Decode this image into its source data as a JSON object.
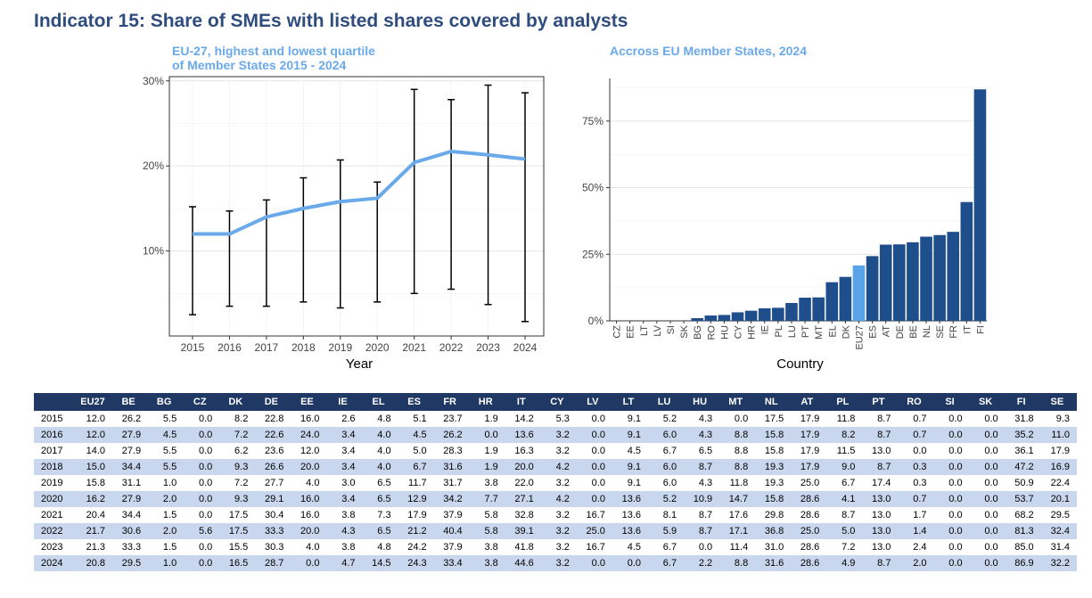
{
  "title": "Indicator 15: Share of SMEs with listed shares covered by analysts",
  "chart_data": [
    {
      "type": "line",
      "title": "EU-27, highest and lowest quartile\n of Member States 2015 - 2024",
      "title_line1": "EU-27, highest and lowest quartile",
      "title_line2": " of Member States 2015 - 2024",
      "xlabel": "Year",
      "ylabel": "",
      "x": [
        2015,
        2016,
        2017,
        2018,
        2019,
        2020,
        2021,
        2022,
        2023,
        2024
      ],
      "x_tick_labels": [
        "2015",
        "2016",
        "2017",
        "2018",
        "2019",
        "2020",
        "2021",
        "2022",
        "2023",
        "2024"
      ],
      "series": [
        {
          "name": "EU27",
          "values": [
            12.0,
            12.0,
            14.0,
            15.0,
            15.8,
            16.2,
            20.4,
            21.7,
            21.3,
            20.8
          ]
        }
      ],
      "error_low": [
        2.5,
        3.5,
        3.5,
        4.0,
        3.3,
        4.0,
        5.0,
        5.5,
        3.7,
        1.7
      ],
      "error_high": [
        15.2,
        14.7,
        16.0,
        18.6,
        20.7,
        18.1,
        29.0,
        27.8,
        29.5,
        28.6
      ],
      "y_ticks": [
        10,
        20,
        30
      ],
      "y_tick_labels": [
        "10%",
        "20%",
        "30%"
      ],
      "ylim": [
        0,
        30.5
      ],
      "line_color": "#6aa9ea",
      "grid": true
    },
    {
      "type": "bar",
      "title": "Accross EU Member States, 2024",
      "xlabel": "Country",
      "ylabel": "",
      "categories": [
        "CZ",
        "EE",
        "LT",
        "LV",
        "SI",
        "SK",
        "BG",
        "RO",
        "HU",
        "CY",
        "HR",
        "IE",
        "PL",
        "LU",
        "PT",
        "MT",
        "EL",
        "DK",
        "EU27",
        "ES",
        "AT",
        "DE",
        "BE",
        "NL",
        "SE",
        "FR",
        "IT",
        "FI"
      ],
      "values": [
        0.0,
        0.0,
        0.0,
        0.0,
        0.0,
        0.0,
        1.0,
        2.0,
        2.2,
        3.2,
        3.8,
        4.7,
        4.9,
        6.7,
        8.7,
        8.8,
        14.5,
        16.5,
        20.8,
        24.3,
        28.6,
        28.7,
        29.5,
        31.6,
        32.2,
        33.4,
        44.6,
        86.9
      ],
      "highlight": "EU27",
      "y_ticks": [
        0,
        25,
        50,
        75
      ],
      "y_tick_labels": [
        "0%",
        "25%",
        "50%",
        "75%"
      ],
      "ylim": [
        0,
        91
      ],
      "bar_color": "#1f4e8c",
      "highlight_color": "#5aa3e8",
      "grid": true
    }
  ],
  "table": {
    "headers": [
      "",
      "EU27",
      "BE",
      "BG",
      "CZ",
      "DK",
      "DE",
      "EE",
      "IE",
      "EL",
      "ES",
      "FR",
      "HR",
      "IT",
      "CY",
      "LV",
      "LT",
      "LU",
      "HU",
      "MT",
      "NL",
      "AT",
      "PL",
      "PT",
      "RO",
      "SI",
      "SK",
      "FI",
      "SE"
    ],
    "rows": [
      [
        "2015",
        "12.0",
        "26.2",
        "5.5",
        "0.0",
        "8.2",
        "22.8",
        "16.0",
        "2.6",
        "4.8",
        "5.1",
        "23.7",
        "1.9",
        "14.2",
        "5.3",
        "0.0",
        "9.1",
        "5.2",
        "4.3",
        "0.0",
        "17.5",
        "17.9",
        "11.8",
        "8.7",
        "0.7",
        "0.0",
        "0.0",
        "31.8",
        "9.3"
      ],
      [
        "2016",
        "12.0",
        "27.9",
        "4.5",
        "0.0",
        "7.2",
        "22.6",
        "24.0",
        "3.4",
        "4.0",
        "4.5",
        "26.2",
        "0.0",
        "13.6",
        "3.2",
        "0.0",
        "9.1",
        "6.0",
        "4.3",
        "8.8",
        "15.8",
        "17.9",
        "8.2",
        "8.7",
        "0.7",
        "0.0",
        "0.0",
        "35.2",
        "11.0"
      ],
      [
        "2017",
        "14.0",
        "27.9",
        "5.5",
        "0.0",
        "6.2",
        "23.6",
        "12.0",
        "3.4",
        "4.0",
        "5.0",
        "28.3",
        "1.9",
        "16.3",
        "3.2",
        "0.0",
        "4.5",
        "6.7",
        "6.5",
        "8.8",
        "15.8",
        "17.9",
        "11.5",
        "13.0",
        "0.0",
        "0.0",
        "0.0",
        "36.1",
        "17.9"
      ],
      [
        "2018",
        "15.0",
        "34.4",
        "5.5",
        "0.0",
        "9.3",
        "26.6",
        "20.0",
        "3.4",
        "4.0",
        "6.7",
        "31.6",
        "1.9",
        "20.0",
        "4.2",
        "0.0",
        "9.1",
        "6.0",
        "8.7",
        "8.8",
        "19.3",
        "17.9",
        "9.0",
        "8.7",
        "0.3",
        "0.0",
        "0.0",
        "47.2",
        "16.9"
      ],
      [
        "2019",
        "15.8",
        "31.1",
        "1.0",
        "0.0",
        "7.2",
        "27.7",
        "4.0",
        "3.0",
        "6.5",
        "11.7",
        "31.7",
        "3.8",
        "22.0",
        "3.2",
        "0.0",
        "9.1",
        "6.0",
        "4.3",
        "11.8",
        "19.3",
        "25.0",
        "6.7",
        "17.4",
        "0.3",
        "0.0",
        "0.0",
        "50.9",
        "22.4"
      ],
      [
        "2020",
        "16.2",
        "27.9",
        "2.0",
        "0.0",
        "9.3",
        "29.1",
        "16.0",
        "3.4",
        "6.5",
        "12.9",
        "34.2",
        "7.7",
        "27.1",
        "4.2",
        "0.0",
        "13.6",
        "5.2",
        "10.9",
        "14.7",
        "15.8",
        "28.6",
        "4.1",
        "13.0",
        "0.7",
        "0.0",
        "0.0",
        "53.7",
        "20.1"
      ],
      [
        "2021",
        "20.4",
        "34.4",
        "1.5",
        "0.0",
        "17.5",
        "30.4",
        "16.0",
        "3.8",
        "7.3",
        "17.9",
        "37.9",
        "5.8",
        "32.8",
        "3.2",
        "16.7",
        "13.6",
        "8.1",
        "8.7",
        "17.6",
        "29.8",
        "28.6",
        "8.7",
        "13.0",
        "1.7",
        "0.0",
        "0.0",
        "68.2",
        "29.5"
      ],
      [
        "2022",
        "21.7",
        "30.6",
        "2.0",
        "5.6",
        "17.5",
        "33.3",
        "20.0",
        "4.3",
        "6.5",
        "21.2",
        "40.4",
        "5.8",
        "39.1",
        "3.2",
        "25.0",
        "13.6",
        "5.9",
        "8.7",
        "17.1",
        "36.8",
        "25.0",
        "5.0",
        "13.0",
        "1.4",
        "0.0",
        "0.0",
        "81.3",
        "32.4"
      ],
      [
        "2023",
        "21.3",
        "33.3",
        "1.5",
        "0.0",
        "15.5",
        "30.3",
        "4.0",
        "3.8",
        "4.8",
        "24.2",
        "37.9",
        "3.8",
        "41.8",
        "3.2",
        "16.7",
        "4.5",
        "6.7",
        "0.0",
        "11.4",
        "31.0",
        "28.6",
        "7.2",
        "13.0",
        "2.4",
        "0.0",
        "0.0",
        "85.0",
        "31.4"
      ],
      [
        "2024",
        "20.8",
        "29.5",
        "1.0",
        "0.0",
        "16.5",
        "28.7",
        "0.0",
        "4.7",
        "14.5",
        "24.3",
        "33.4",
        "3.8",
        "44.6",
        "3.2",
        "0.0",
        "0.0",
        "6.7",
        "2.2",
        "8.8",
        "31.6",
        "28.6",
        "4.9",
        "8.7",
        "2.0",
        "0.0",
        "0.0",
        "86.9",
        "32.2"
      ]
    ]
  },
  "colors": {
    "title": "#2e4c7d",
    "subtitle": "#6aa9ea",
    "table_header_bg": "#1f3864",
    "table_alt_row": "#c9d7ee"
  }
}
